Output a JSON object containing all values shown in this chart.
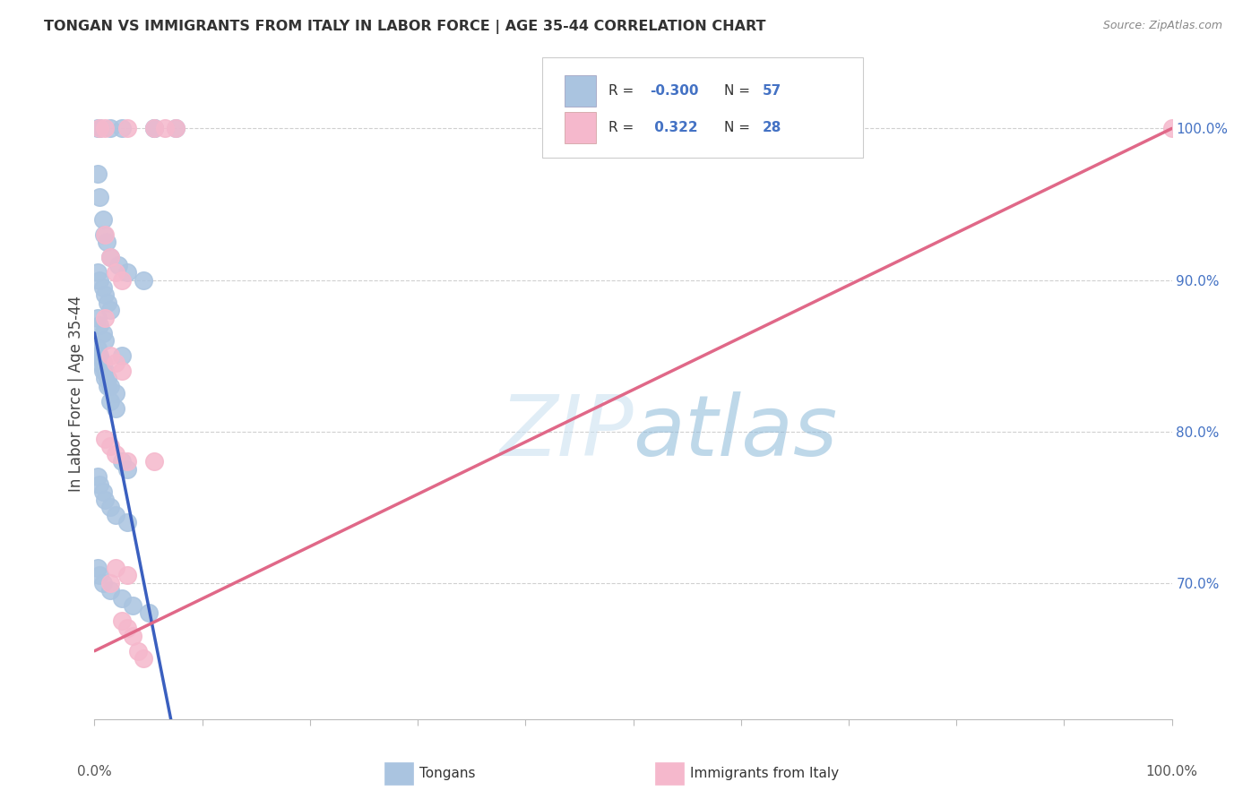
{
  "title": "TONGAN VS IMMIGRANTS FROM ITALY IN LABOR FORCE | AGE 35-44 CORRELATION CHART",
  "source": "Source: ZipAtlas.com",
  "ylabel": "In Labor Force | Age 35-44",
  "legend_label1": "Tongans",
  "legend_label2": "Immigrants from Italy",
  "R1": -0.3,
  "N1": 57,
  "R2": 0.322,
  "N2": 28,
  "blue_dot_color": "#aac4e0",
  "blue_line_color": "#3a5fbf",
  "pink_dot_color": "#f5b8cc",
  "pink_line_color": "#e06888",
  "right_label_color": "#4472c4",
  "grid_color": "#d0d0d0",
  "title_color": "#333333",
  "source_color": "#888888",
  "xmin": 0.0,
  "xmax": 100.0,
  "ymin": 61.0,
  "ymax": 104.0,
  "blue_trend_intercept": 86.5,
  "blue_trend_slope": -3.6,
  "blue_solid_xmax": 10.0,
  "blue_dash_xmax": 48.0,
  "pink_trend_intercept": 65.5,
  "pink_trend_slope": 0.345,
  "tongan_x": [
    1.5,
    2.5,
    5.5,
    7.5,
    0.3,
    0.5,
    0.8,
    0.9,
    1.1,
    1.5,
    2.2,
    3.0,
    4.5,
    0.3,
    0.5,
    0.8,
    1.0,
    1.2,
    1.5,
    0.3,
    0.5,
    0.8,
    1.0,
    0.3,
    0.5,
    0.8,
    1.0,
    1.2,
    1.5,
    2.0,
    2.5,
    0.3,
    0.5,
    0.8,
    1.0,
    1.2,
    1.5,
    2.0,
    2.5,
    3.0,
    0.3,
    0.5,
    0.8,
    1.0,
    1.5,
    2.0,
    3.0,
    0.3,
    0.5,
    0.8,
    1.5,
    2.5,
    3.5,
    5.0,
    0.3,
    0.5,
    5.5
  ],
  "tongan_y": [
    100.0,
    100.0,
    100.0,
    100.0,
    97.0,
    95.5,
    94.0,
    93.0,
    92.5,
    91.5,
    91.0,
    90.5,
    90.0,
    90.5,
    90.0,
    89.5,
    89.0,
    88.5,
    88.0,
    87.5,
    87.0,
    86.5,
    86.0,
    85.5,
    85.0,
    84.5,
    84.0,
    83.5,
    83.0,
    82.5,
    85.0,
    85.0,
    84.5,
    84.0,
    83.5,
    83.0,
    82.0,
    81.5,
    78.0,
    77.5,
    77.0,
    76.5,
    76.0,
    75.5,
    75.0,
    74.5,
    74.0,
    71.0,
    70.5,
    70.0,
    69.5,
    69.0,
    68.5,
    68.0,
    100.0,
    100.0,
    100.0
  ],
  "italy_x": [
    0.5,
    1.0,
    3.0,
    5.5,
    6.5,
    7.5,
    1.0,
    1.5,
    2.0,
    2.5,
    1.0,
    1.5,
    2.0,
    2.5,
    1.0,
    1.5,
    2.0,
    3.0,
    2.0,
    3.0,
    5.5,
    1.5,
    2.5,
    3.0,
    3.5,
    4.0,
    4.5,
    100.0
  ],
  "italy_y": [
    100.0,
    100.0,
    100.0,
    100.0,
    100.0,
    100.0,
    93.0,
    91.5,
    90.5,
    90.0,
    87.5,
    85.0,
    84.5,
    84.0,
    79.5,
    79.0,
    78.5,
    78.0,
    71.0,
    70.5,
    78.0,
    70.0,
    67.5,
    67.0,
    66.5,
    65.5,
    65.0,
    100.0
  ],
  "ytick_values": [
    70.0,
    80.0,
    90.0,
    100.0
  ],
  "ytick_labels": [
    "70.0%",
    "80.0%",
    "90.0%",
    "100.0%"
  ]
}
